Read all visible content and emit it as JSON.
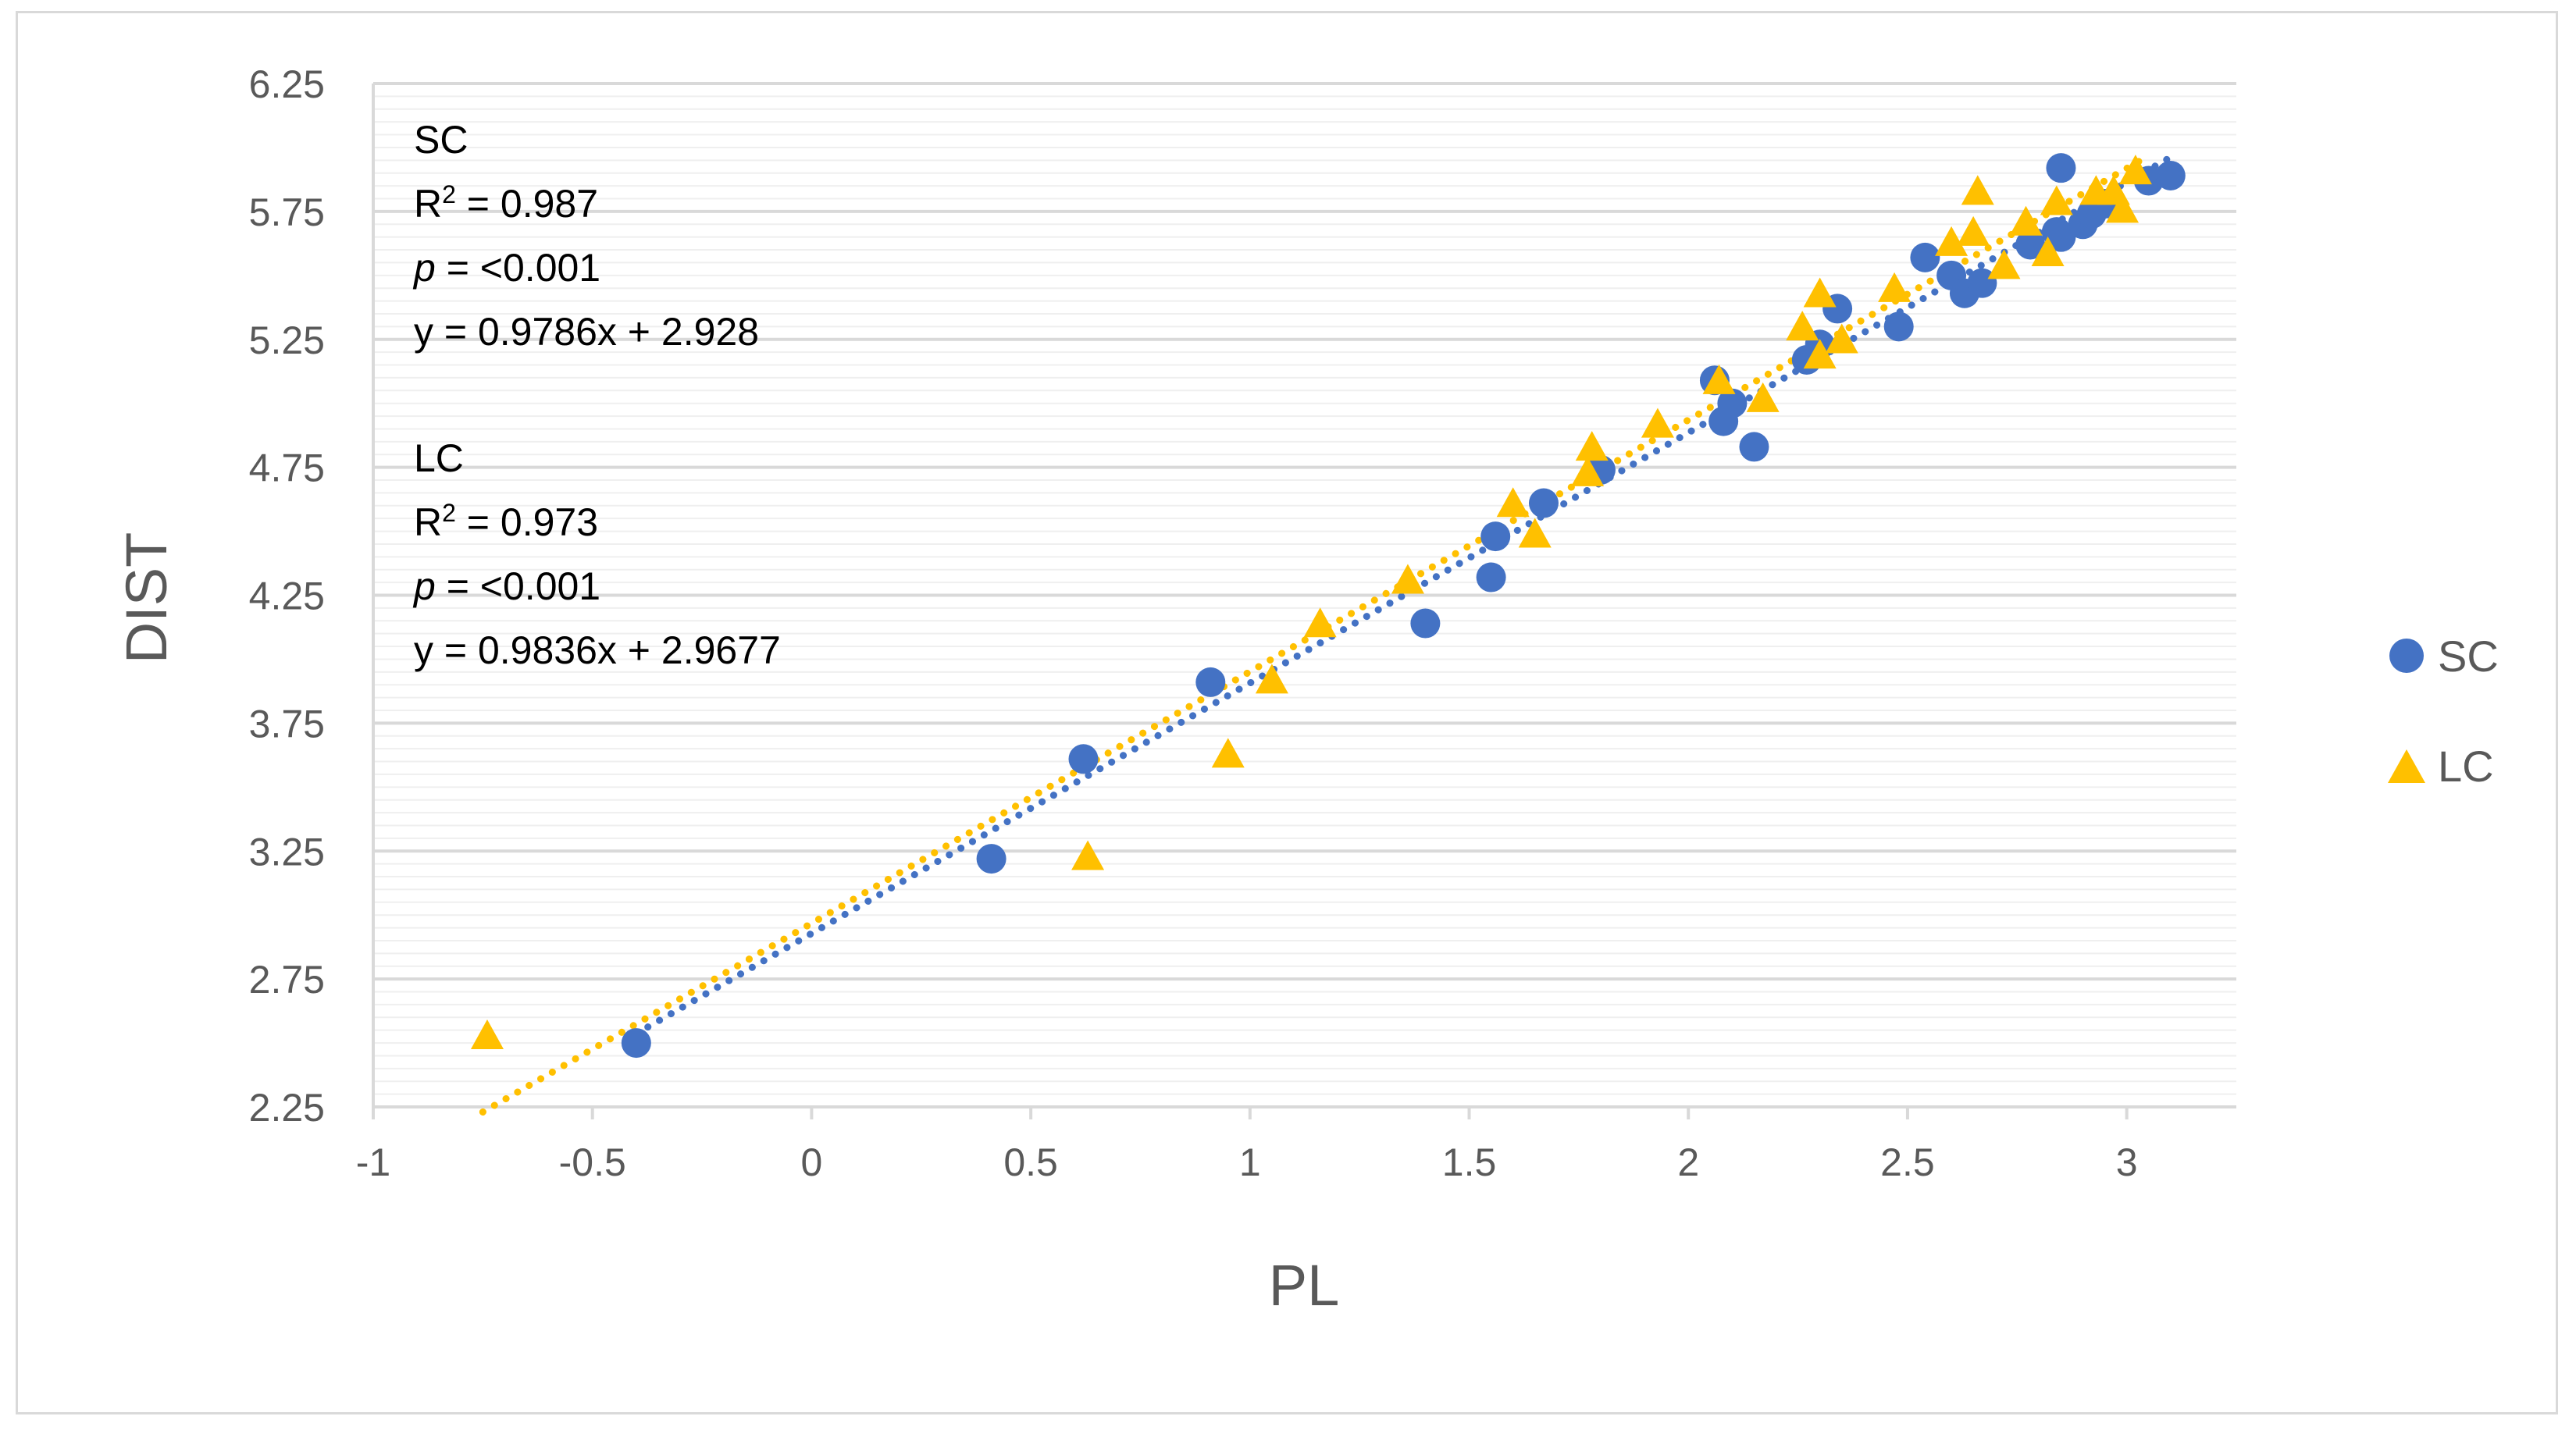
{
  "chart_data": {
    "type": "scatter",
    "title": "",
    "xlabel": "PL",
    "ylabel": "DIST",
    "xlim": [
      -1,
      3.25
    ],
    "ylim": [
      2.25,
      6.25
    ],
    "x_ticks": [
      -1,
      -0.5,
      0,
      0.5,
      1,
      1.5,
      2,
      2.5,
      3
    ],
    "x_tick_labels": [
      "-1",
      "-0.5",
      "0",
      "0.5",
      "1",
      "1.5",
      "2",
      "2.5",
      "3"
    ],
    "y_ticks": [
      2.25,
      2.75,
      3.25,
      3.75,
      4.25,
      4.75,
      5.25,
      5.75,
      6.25
    ],
    "y_tick_labels": [
      "2.25",
      "2.75",
      "3.25",
      "3.75",
      "4.25",
      "4.75",
      "5.25",
      "5.75",
      "6.25"
    ],
    "grid": true,
    "legend_position": "right",
    "series": [
      {
        "name": "SC",
        "marker": "circle",
        "color": "#4472C4",
        "trendline": {
          "slope": 0.9786,
          "intercept": 2.928,
          "x_range": [
            -0.4,
            3.1
          ],
          "style": "dotted"
        },
        "points": [
          [
            -0.4,
            2.5
          ],
          [
            0.41,
            3.22
          ],
          [
            0.62,
            3.61
          ],
          [
            0.91,
            3.91
          ],
          [
            1.4,
            4.14
          ],
          [
            1.55,
            4.32
          ],
          [
            1.56,
            4.48
          ],
          [
            1.67,
            4.61
          ],
          [
            1.8,
            4.74
          ],
          [
            2.06,
            5.09
          ],
          [
            2.08,
            4.93
          ],
          [
            2.1,
            5.0
          ],
          [
            2.15,
            4.83
          ],
          [
            2.27,
            5.17
          ],
          [
            2.3,
            5.23
          ],
          [
            2.34,
            5.37
          ],
          [
            2.48,
            5.3
          ],
          [
            2.54,
            5.57
          ],
          [
            2.6,
            5.5
          ],
          [
            2.63,
            5.43
          ],
          [
            2.67,
            5.47
          ],
          [
            2.78,
            5.62
          ],
          [
            2.84,
            5.67
          ],
          [
            2.85,
            5.65
          ],
          [
            2.85,
            5.92
          ],
          [
            2.9,
            5.7
          ],
          [
            2.92,
            5.74
          ],
          [
            2.95,
            5.78
          ],
          [
            3.05,
            5.87
          ],
          [
            3.1,
            5.89
          ]
        ]
      },
      {
        "name": "LC",
        "marker": "triangle",
        "color": "#FFC000",
        "trendline": {
          "slope": 0.9836,
          "intercept": 2.9677,
          "x_range": [
            -0.75,
            3.05
          ],
          "style": "dotted"
        },
        "points": [
          [
            -0.74,
            2.52
          ],
          [
            0.63,
            3.22
          ],
          [
            0.95,
            3.62
          ],
          [
            1.05,
            3.91
          ],
          [
            1.16,
            4.13
          ],
          [
            1.36,
            4.3
          ],
          [
            1.6,
            4.6
          ],
          [
            1.65,
            4.48
          ],
          [
            1.77,
            4.72
          ],
          [
            1.78,
            4.82
          ],
          [
            1.93,
            4.91
          ],
          [
            2.07,
            5.08
          ],
          [
            2.17,
            5.01
          ],
          [
            2.26,
            5.29
          ],
          [
            2.3,
            5.42
          ],
          [
            2.3,
            5.18
          ],
          [
            2.35,
            5.24
          ],
          [
            2.47,
            5.44
          ],
          [
            2.6,
            5.62
          ],
          [
            2.65,
            5.66
          ],
          [
            2.66,
            5.82
          ],
          [
            2.72,
            5.53
          ],
          [
            2.77,
            5.7
          ],
          [
            2.82,
            5.58
          ],
          [
            2.84,
            5.78
          ],
          [
            2.93,
            5.82
          ],
          [
            2.97,
            5.82
          ],
          [
            2.99,
            5.75
          ],
          [
            3.02,
            5.9
          ]
        ]
      }
    ],
    "annotations": {
      "sc": {
        "label": "SC",
        "r2_prefix": "R",
        "r2_sup": "2",
        "r2_value": " = 0.987",
        "p_symbol": "p",
        "p_value": " = <0.001",
        "equation": "y = 0.9786x + 2.928"
      },
      "lc": {
        "label": "LC",
        "r2_prefix": "R",
        "r2_sup": "2",
        "r2_value": " = 0.973",
        "p_symbol": "p",
        "p_value": " = <0.001",
        "equation": "y = 0.9836x + 2.9677"
      }
    }
  }
}
